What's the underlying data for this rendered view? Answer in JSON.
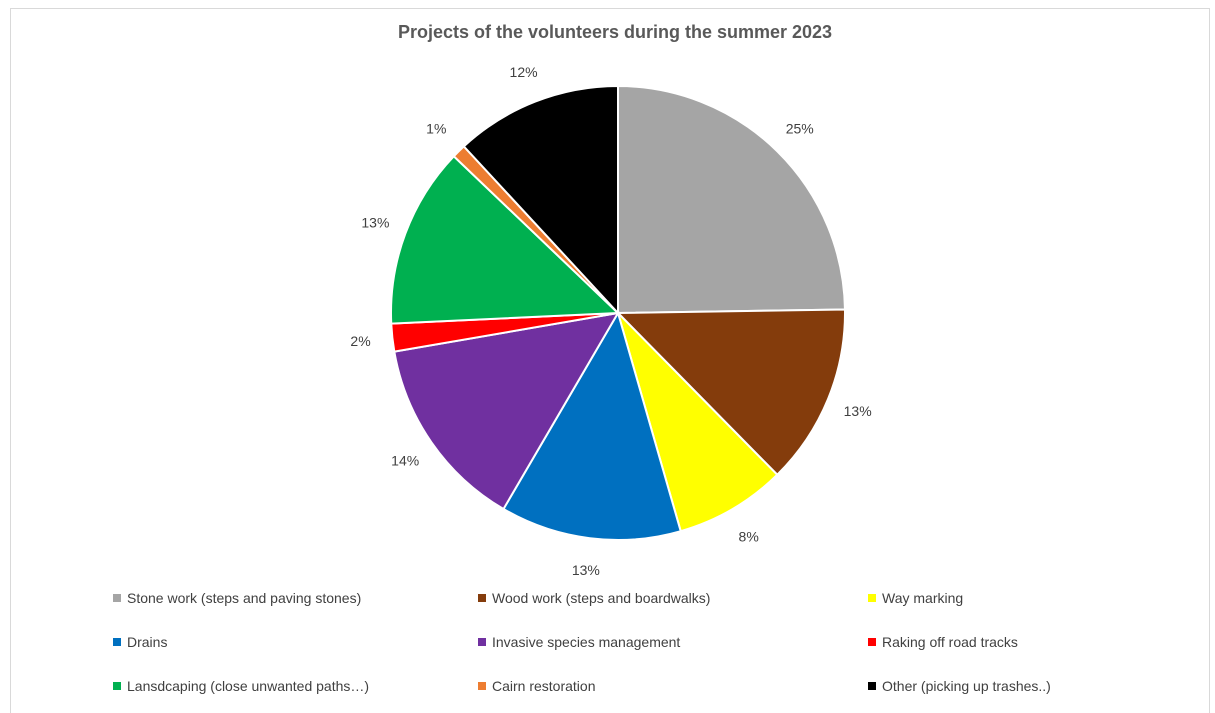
{
  "chart_data": {
    "type": "pie",
    "title": "Projects of the volunteers during the summer 2023",
    "slices": [
      {
        "label": "Stone work (steps and paving stones)",
        "value": 25,
        "display": "25%",
        "color": "#a5a5a5"
      },
      {
        "label": "Wood work (steps and boardwalks)",
        "value": 13,
        "display": "13%",
        "color": "#843c0c"
      },
      {
        "label": "Way marking",
        "value": 8,
        "display": "8%",
        "color": "#ffff00"
      },
      {
        "label": "Drains",
        "value": 13,
        "display": "13%",
        "color": "#0070c0"
      },
      {
        "label": "Invasive species management",
        "value": 14,
        "display": "14%",
        "color": "#7030a0"
      },
      {
        "label": "Raking off road tracks",
        "value": 2,
        "display": "2%",
        "color": "#ff0000"
      },
      {
        "label": "Lansdcaping (close unwanted paths…)",
        "value": 13,
        "display": "13%",
        "color": "#00b050"
      },
      {
        "label": "Cairn restoration",
        "value": 1,
        "display": "1%",
        "color": "#ed7d31"
      },
      {
        "label": "Other (picking up trashes..)",
        "value": 12,
        "display": "12%",
        "color": "#000000"
      }
    ],
    "legend_position": "bottom"
  }
}
